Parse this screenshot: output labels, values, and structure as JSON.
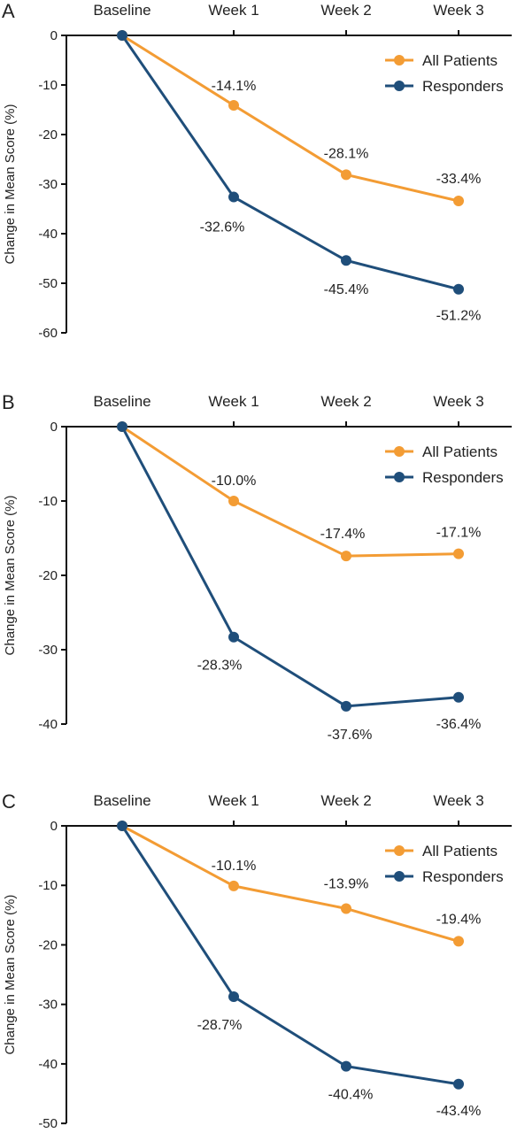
{
  "chart_data": [
    {
      "type": "line",
      "panel": "A",
      "categories": [
        "Baseline",
        "Week 1",
        "Week 2",
        "Week 3"
      ],
      "ylabel": "Change in Mean Score (%)",
      "yticks": [
        "0",
        "-10",
        "-20",
        "-30",
        "-40",
        "-50",
        "-60"
      ],
      "ylim": [
        -60,
        0
      ],
      "legend_position": "top-right",
      "series": [
        {
          "name": "All Patients",
          "color": "#F39C34",
          "values": [
            0,
            -14.1,
            -28.1,
            -33.4
          ],
          "labels": [
            "",
            "-14.1%",
            "-28.1%",
            "-33.4%"
          ]
        },
        {
          "name": "Responders",
          "color": "#1F4E7A",
          "values": [
            0,
            -32.6,
            -45.4,
            -51.2
          ],
          "labels": [
            "",
            "-32.6%",
            "-45.4%",
            "-51.2%"
          ]
        }
      ]
    },
    {
      "type": "line",
      "panel": "B",
      "categories": [
        "Baseline",
        "Week 1",
        "Week 2",
        "Week 3"
      ],
      "ylabel": "Change in Mean Score (%)",
      "yticks": [
        "0",
        "-10",
        "-20",
        "-30",
        "-40"
      ],
      "ylim": [
        -40,
        0
      ],
      "legend_position": "top-right",
      "series": [
        {
          "name": "All Patients",
          "color": "#F39C34",
          "values": [
            0,
            -10.0,
            -17.4,
            -17.1
          ],
          "labels": [
            "",
            "-10.0%",
            "-17.4%",
            "-17.1%"
          ]
        },
        {
          "name": "Responders",
          "color": "#1F4E7A",
          "values": [
            0,
            -28.3,
            -37.6,
            -36.4
          ],
          "labels": [
            "",
            "-28.3%",
            "-37.6%",
            "-36.4%"
          ]
        }
      ]
    },
    {
      "type": "line",
      "panel": "C",
      "categories": [
        "Baseline",
        "Week 1",
        "Week 2",
        "Week 3"
      ],
      "ylabel": "Change in Mean Score (%)",
      "yticks": [
        "0",
        "-10",
        "-20",
        "-30",
        "-40",
        "-50"
      ],
      "ylim": [
        -50,
        0
      ],
      "legend_position": "top-right",
      "series": [
        {
          "name": "All Patients",
          "color": "#F39C34",
          "values": [
            0,
            -10.1,
            -13.9,
            -19.4
          ],
          "labels": [
            "",
            "-10.1%",
            "-13.9%",
            "-19.4%"
          ]
        },
        {
          "name": "Responders",
          "color": "#1F4E7A",
          "values": [
            0,
            -28.7,
            -40.4,
            -43.4
          ],
          "labels": [
            "",
            "-28.7%",
            "-40.4%",
            "-43.4%"
          ]
        }
      ]
    }
  ]
}
